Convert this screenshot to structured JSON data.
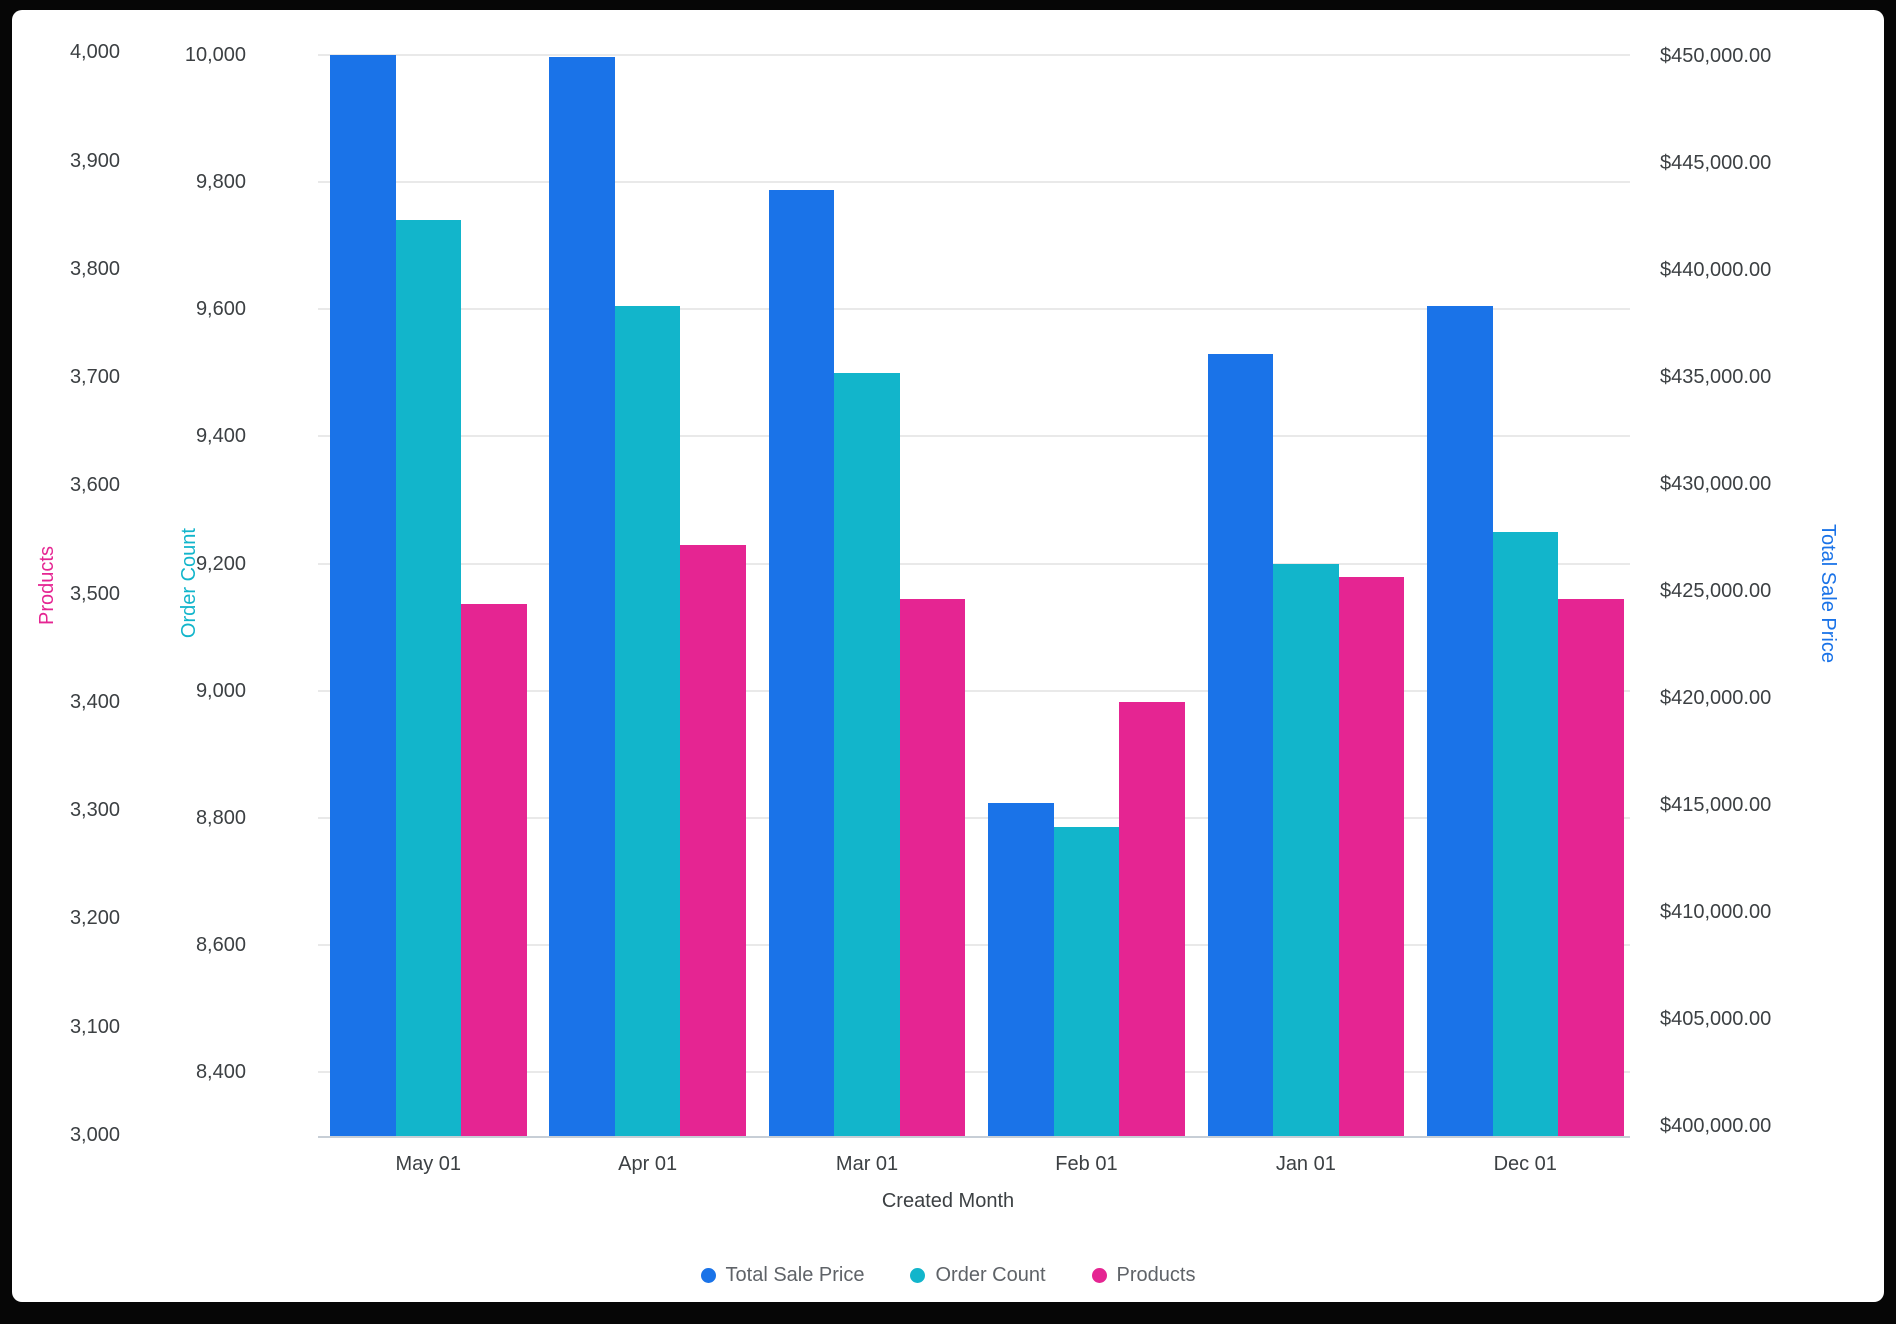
{
  "chart_data": {
    "type": "bar",
    "x_axis": {
      "title": "Created Month",
      "categories": [
        "May 01",
        "Apr 01",
        "Mar 01",
        "Feb 01",
        "Jan 01",
        "Dec 01"
      ]
    },
    "series": [
      {
        "name": "Total Sale Price",
        "color": "#1a73e8",
        "axis": "sale",
        "values": [
          450050,
          449950,
          443750,
          415100,
          436100,
          438300
        ]
      },
      {
        "name": "Order Count",
        "color": "#12b5cb",
        "axis": "count",
        "values": [
          9740,
          9605,
          9500,
          8785,
          9200,
          9250
        ]
      },
      {
        "name": "Products",
        "color": "#e52592",
        "axis": "products",
        "values": [
          3490,
          3545,
          3495,
          3400,
          3515,
          3495
        ]
      }
    ],
    "y_axes": [
      {
        "id": "products",
        "title": "Products",
        "side": "left",
        "color": "#e52592",
        "range": [
          2998,
          4006
        ],
        "ticks": {
          "labels": [
            "4,000",
            "3,900",
            "3,800",
            "3,700",
            "3,600",
            "3,500",
            "3,400",
            "3,300",
            "3,200",
            "3,100",
            "3,000"
          ],
          "values": [
            4000,
            3900,
            3800,
            3700,
            3600,
            3500,
            3400,
            3300,
            3200,
            3100,
            3000
          ]
        }
      },
      {
        "id": "count",
        "title": "Order Count",
        "side": "left",
        "color": "#12b5cb",
        "range": [
          8298,
          10014
        ],
        "gridlines": true,
        "ticks": {
          "labels": [
            "10,000",
            "9,800",
            "9,600",
            "9,400",
            "9,200",
            "9,000",
            "8,800",
            "8,600",
            "8,400"
          ],
          "values": [
            10000,
            9800,
            9600,
            9400,
            9200,
            9000,
            8800,
            8600,
            8400
          ]
        }
      },
      {
        "id": "sale",
        "title": "Total Sale Price",
        "side": "right",
        "color": "#1a73e8",
        "range": [
          399495,
          450467
        ],
        "ticks": {
          "labels": [
            "$450,000.00",
            "$445,000.00",
            "$440,000.00",
            "$435,000.00",
            "$430,000.00",
            "$425,000.00",
            "$420,000.00",
            "$415,000.00",
            "$410,000.00",
            "$405,000.00",
            "$400,000.00"
          ],
          "values": [
            450000,
            445000,
            440000,
            435000,
            430000,
            425000,
            420000,
            415000,
            410000,
            405000,
            400000
          ]
        }
      }
    ],
    "legend": {
      "position": "bottom",
      "items": [
        "Total Sale Price",
        "Order Count",
        "Products"
      ]
    }
  }
}
